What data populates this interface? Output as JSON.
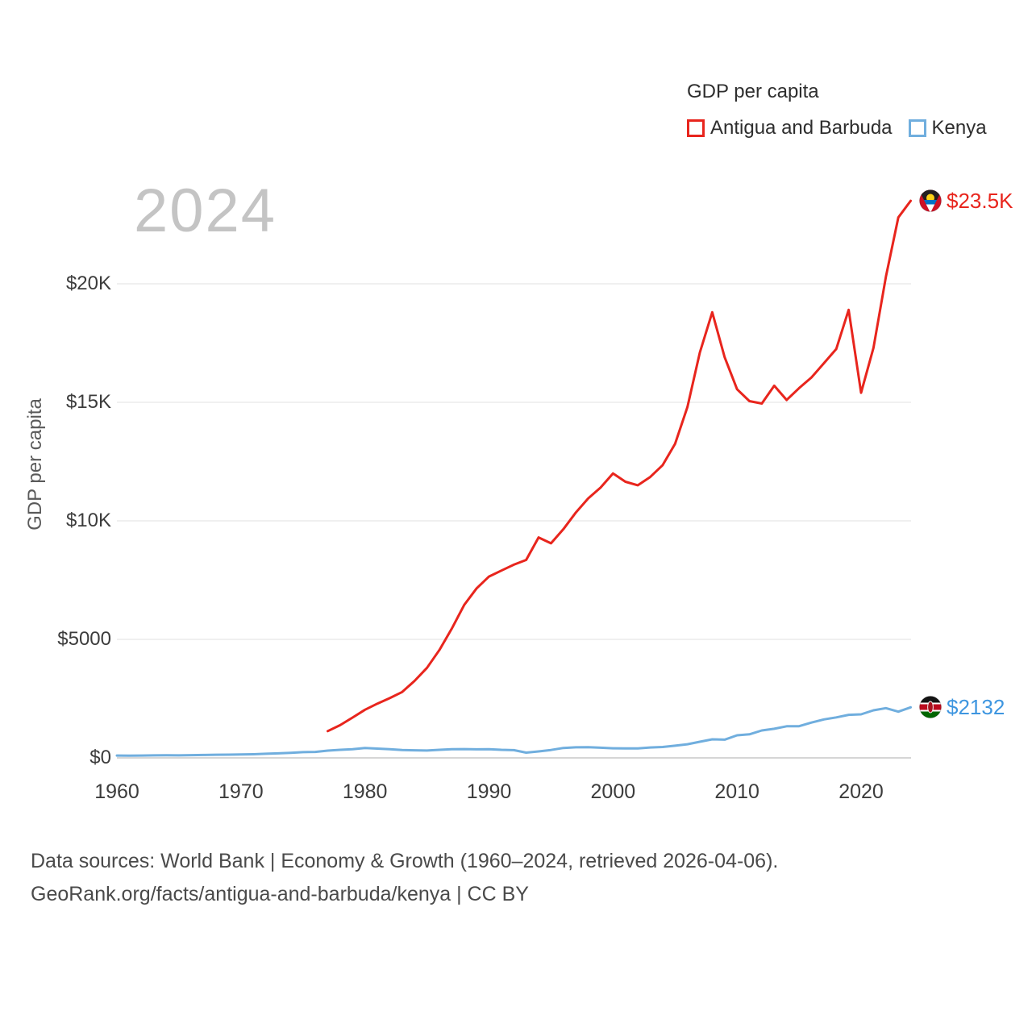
{
  "page": {
    "watermark": "2024",
    "footer_line1": "Data sources: World Bank | Economy & Growth (1960–2024, retrieved 2026-04-06).",
    "footer_line2": "GeoRank.org/facts/antigua-and-barbuda/kenya | CC BY"
  },
  "legend": {
    "title": "GDP per capita",
    "items": [
      {
        "label": "Antigua and Barbuda",
        "color": "#e8251d"
      },
      {
        "label": "Kenya",
        "color": "#70aede"
      }
    ]
  },
  "chart_data": {
    "type": "line",
    "title": "GDP per capita",
    "xlabel": "",
    "ylabel": "GDP per capita",
    "x_range": [
      1960,
      2024
    ],
    "y_range": [
      0,
      20000
    ],
    "grid": true,
    "legend_position": "top-right",
    "yticks": [
      {
        "value": 0,
        "label": "$0"
      },
      {
        "value": 5000,
        "label": "$5000"
      },
      {
        "value": 10000,
        "label": "$10K"
      },
      {
        "value": 15000,
        "label": "$15K"
      },
      {
        "value": 20000,
        "label": "$20K"
      }
    ],
    "xticks": [
      {
        "value": 1960,
        "label": "1960"
      },
      {
        "value": 1970,
        "label": "1970"
      },
      {
        "value": 1980,
        "label": "1980"
      },
      {
        "value": 1990,
        "label": "1990"
      },
      {
        "value": 2000,
        "label": "2000"
      },
      {
        "value": 2010,
        "label": "2010"
      },
      {
        "value": 2020,
        "label": "2020"
      }
    ],
    "series": [
      {
        "name": "Antigua and Barbuda",
        "color": "#e8251d",
        "label_color": "#e8251d",
        "end_label": "$23.5K",
        "end_value": 23500,
        "flag": "antigua-and-barbuda-flag",
        "points": [
          [
            1977,
            1130
          ],
          [
            1978,
            1380
          ],
          [
            1979,
            1700
          ],
          [
            1980,
            2030
          ],
          [
            1981,
            2290
          ],
          [
            1982,
            2520
          ],
          [
            1983,
            2780
          ],
          [
            1984,
            3250
          ],
          [
            1985,
            3800
          ],
          [
            1986,
            4550
          ],
          [
            1987,
            5450
          ],
          [
            1988,
            6450
          ],
          [
            1989,
            7150
          ],
          [
            1990,
            7650
          ],
          [
            1991,
            7900
          ],
          [
            1992,
            8150
          ],
          [
            1993,
            8350
          ],
          [
            1994,
            9300
          ],
          [
            1995,
            9050
          ],
          [
            1996,
            9650
          ],
          [
            1997,
            10350
          ],
          [
            1998,
            10950
          ],
          [
            1999,
            11400
          ],
          [
            2000,
            12000
          ],
          [
            2001,
            11650
          ],
          [
            2002,
            11500
          ],
          [
            2003,
            11850
          ],
          [
            2004,
            12350
          ],
          [
            2005,
            13250
          ],
          [
            2006,
            14800
          ],
          [
            2007,
            17100
          ],
          [
            2008,
            18800
          ],
          [
            2009,
            16900
          ],
          [
            2010,
            15550
          ],
          [
            2011,
            15050
          ],
          [
            2012,
            14950
          ],
          [
            2013,
            15700
          ],
          [
            2014,
            15100
          ],
          [
            2015,
            15600
          ],
          [
            2016,
            16050
          ],
          [
            2017,
            16650
          ],
          [
            2018,
            17250
          ],
          [
            2019,
            18900
          ],
          [
            2020,
            15400
          ],
          [
            2021,
            17300
          ],
          [
            2022,
            20300
          ],
          [
            2023,
            22800
          ],
          [
            2024,
            23500
          ]
        ]
      },
      {
        "name": "Kenya",
        "color": "#70aede",
        "label_color": "#3e96e0",
        "end_label": "$2132",
        "end_value": 2132,
        "flag": "kenya-flag",
        "points": [
          [
            1960,
            100
          ],
          [
            1961,
            95
          ],
          [
            1962,
            100
          ],
          [
            1963,
            104
          ],
          [
            1964,
            110
          ],
          [
            1965,
            104
          ],
          [
            1966,
            116
          ],
          [
            1967,
            122
          ],
          [
            1968,
            131
          ],
          [
            1969,
            137
          ],
          [
            1970,
            143
          ],
          [
            1971,
            152
          ],
          [
            1972,
            172
          ],
          [
            1973,
            192
          ],
          [
            1974,
            215
          ],
          [
            1975,
            240
          ],
          [
            1976,
            252
          ],
          [
            1977,
            307
          ],
          [
            1978,
            340
          ],
          [
            1979,
            367
          ],
          [
            1980,
            420
          ],
          [
            1981,
            390
          ],
          [
            1982,
            368
          ],
          [
            1983,
            330
          ],
          [
            1984,
            320
          ],
          [
            1985,
            310
          ],
          [
            1986,
            340
          ],
          [
            1987,
            365
          ],
          [
            1988,
            372
          ],
          [
            1989,
            360
          ],
          [
            1990,
            366
          ],
          [
            1991,
            341
          ],
          [
            1992,
            327
          ],
          [
            1993,
            220
          ],
          [
            1994,
            272
          ],
          [
            1995,
            334
          ],
          [
            1996,
            420
          ],
          [
            1997,
            445
          ],
          [
            1998,
            452
          ],
          [
            1999,
            430
          ],
          [
            2000,
            404
          ],
          [
            2001,
            402
          ],
          [
            2002,
            400
          ],
          [
            2003,
            438
          ],
          [
            2004,
            460
          ],
          [
            2005,
            515
          ],
          [
            2006,
            576
          ],
          [
            2007,
            680
          ],
          [
            2008,
            783
          ],
          [
            2009,
            770
          ],
          [
            2010,
            952
          ],
          [
            2011,
            992
          ],
          [
            2012,
            1155
          ],
          [
            2013,
            1229
          ],
          [
            2014,
            1335
          ],
          [
            2015,
            1337
          ],
          [
            2016,
            1491
          ],
          [
            2017,
            1622
          ],
          [
            2018,
            1708
          ],
          [
            2019,
            1817
          ],
          [
            2020,
            1838
          ],
          [
            2021,
            2007
          ],
          [
            2022,
            2099
          ],
          [
            2023,
            1950
          ],
          [
            2024,
            2132
          ]
        ]
      }
    ]
  }
}
